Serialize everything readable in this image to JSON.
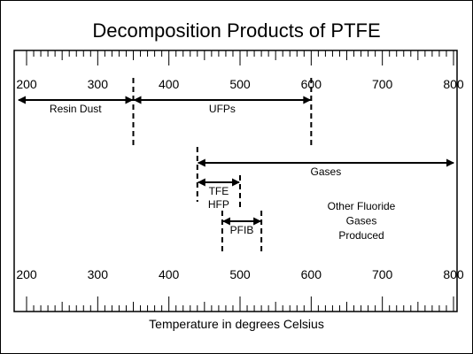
{
  "title": "Decomposition Products of PTFE",
  "axis": {
    "label": "Temperature in degrees Celsius",
    "unit": "°C",
    "min": 200,
    "max": 800,
    "major_ticks": [
      200,
      300,
      400,
      500,
      600,
      700,
      800
    ],
    "minor_step": 10,
    "mid_step": 50
  },
  "ranges": [
    {
      "id": "resin-dust",
      "label": "Resin Dust",
      "start": 200,
      "end": 350,
      "row": 1
    },
    {
      "id": "ufps",
      "label": "UFPs",
      "start": 350,
      "end": 600,
      "row": 1
    },
    {
      "id": "gases",
      "label": "Gases",
      "start": 440,
      "end": 800,
      "row": 2
    },
    {
      "id": "tfe-hfp",
      "label": "TFE",
      "label2": "HFP",
      "start": 440,
      "end": 500,
      "row": 3
    },
    {
      "id": "pfib",
      "label": "PFIB",
      "start": 475,
      "end": 530,
      "row": 4
    }
  ],
  "markers": [
    {
      "id": "m350",
      "at": 350
    },
    {
      "id": "m600",
      "at": 600
    },
    {
      "id": "m440",
      "at": 440
    },
    {
      "id": "m500",
      "at": 500
    },
    {
      "id": "m475",
      "at": 475
    },
    {
      "id": "m530",
      "at": 530
    }
  ],
  "note": [
    "Other Fluoride",
    "Gases",
    "Produced"
  ],
  "colors": {
    "line": "#000000",
    "background": "#ffffff"
  }
}
